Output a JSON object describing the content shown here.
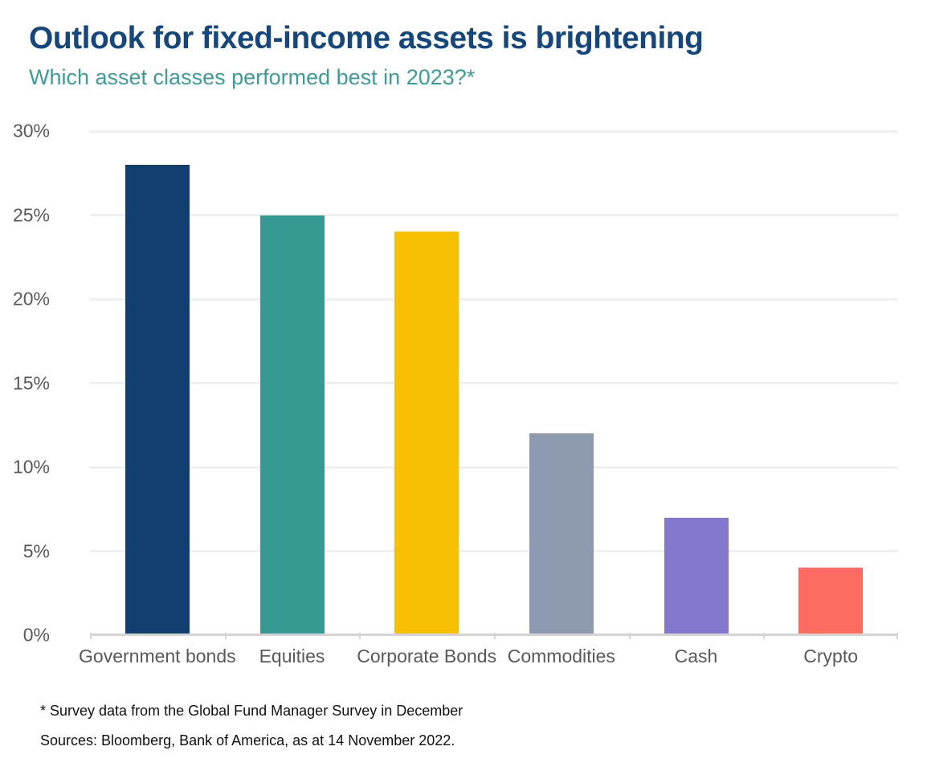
{
  "header": {
    "title": "Outlook for fixed-income assets is brightening",
    "subtitle": "Which asset classes performed best in 2023?*",
    "title_color": "#15477e",
    "subtitle_color": "#3a9e95"
  },
  "chart_data": {
    "type": "bar",
    "title": "Outlook for fixed-income assets is brightening",
    "subtitle": "Which asset classes performed best in 2023?*",
    "categories": [
      "Government bonds",
      "Equities",
      "Corporate Bonds",
      "Commodities",
      "Cash",
      "Crypto"
    ],
    "values": [
      28,
      25,
      24,
      12,
      7,
      4
    ],
    "bar_colors": [
      "#123f6f",
      "#369a93",
      "#f8c003",
      "#8e9ab0",
      "#8278ce",
      "#fc6c61"
    ],
    "xlabel": "",
    "ylabel": "",
    "ylim": [
      0,
      30
    ],
    "ytick_step": 5,
    "ytick_suffix": "%",
    "grid": true,
    "legend": false,
    "axis_label_color": "#595959",
    "gridline_color": "#f0f0f0",
    "baseline_color": "#d4d4d4"
  },
  "footnotes": {
    "note1": "* Survey data from the Global Fund Manager Survey in December",
    "note2": "Sources: Bloomberg, Bank of America, as at 14 November 2022."
  }
}
